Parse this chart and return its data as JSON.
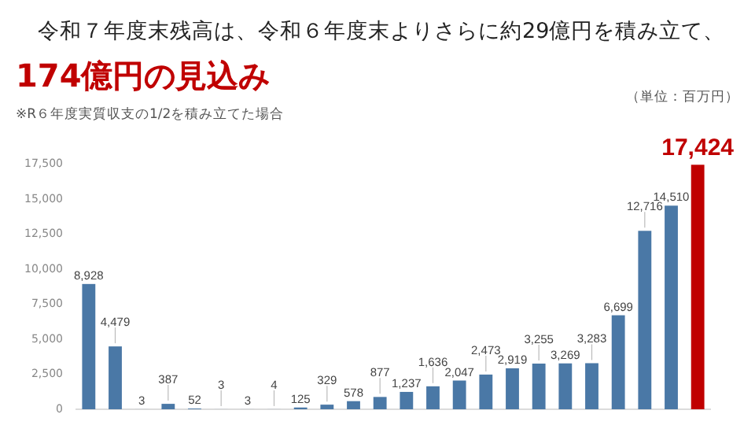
{
  "chart_data": {
    "type": "bar",
    "title": "令和７年度末残高は、令和６年度末よりさらに約29億円を積み立て、",
    "subtitle": "174億円の見込み",
    "annotations": [
      "※R６年度実質収支の1/2を積み立てた場合",
      "（単位：百万円）"
    ],
    "categories": [
      null,
      null,
      null,
      null,
      null,
      null,
      null,
      null,
      null,
      null,
      null,
      null,
      null,
      null,
      null,
      null,
      null,
      null,
      null,
      null,
      null,
      null,
      null,
      null
    ],
    "values": [
      8928,
      4479,
      3,
      387,
      52,
      3,
      3,
      4,
      125,
      329,
      578,
      877,
      1237,
      1636,
      2047,
      2473,
      2919,
      3255,
      3269,
      3283,
      6699,
      12716,
      14510,
      17424
    ],
    "colors": [
      "#4a78a6",
      "#4a78a6",
      "#4a78a6",
      "#4a78a6",
      "#4a78a6",
      "#4a78a6",
      "#4a78a6",
      "#4a78a6",
      "#4a78a6",
      "#4a78a6",
      "#4a78a6",
      "#4a78a6",
      "#4a78a6",
      "#4a78a6",
      "#4a78a6",
      "#4a78a6",
      "#4a78a6",
      "#4a78a6",
      "#4a78a6",
      "#4a78a6",
      "#4a78a6",
      "#4a78a6",
      "#4a78a6",
      "#c00000"
    ],
    "value_labels": [
      "8,928",
      "4,479",
      "3",
      "387",
      "52",
      "3",
      "3",
      "4",
      "125",
      "329",
      "578",
      "877",
      "1,237",
      "1,636",
      "2,047",
      "2,473",
      "2,919",
      "3,255",
      "3,269",
      "3,283",
      "6,699",
      "12,716",
      "14,510",
      "17,424"
    ],
    "ylim": [
      0,
      17500
    ],
    "yticks": [
      0,
      {
        "value": 2500,
        "label": "2,500"
      },
      {
        "value": 5000,
        "label": "5,000"
      },
      {
        "value": 7500,
        "label": "7,500"
      },
      {
        "value": 10000,
        "label": "10,000"
      },
      {
        "value": 12500,
        "label": "12,500"
      },
      {
        "value": 15000,
        "label": "15,000"
      },
      {
        "value": 17500,
        "label": "17,500"
      }
    ],
    "grid": false
  }
}
